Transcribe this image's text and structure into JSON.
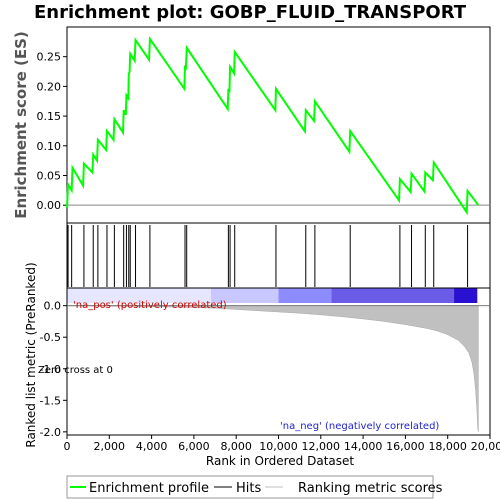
{
  "chart_data": [
    {
      "type": "line",
      "title": "Enrichment plot: GOBP_FLUID_TRANSPORT",
      "ylabel": "Enrichment score (ES)",
      "xlim": [
        0,
        20000
      ],
      "ylim": [
        -0.03,
        0.3
      ],
      "yticks": [
        "0.00",
        "0.05",
        "0.10",
        "0.15",
        "0.20",
        "0.25"
      ],
      "ytick_values": [
        0,
        0.05,
        0.1,
        0.15,
        0.2,
        0.25
      ],
      "color": "#00ff00",
      "series": [
        {
          "name": "Enrichment profile",
          "points": [
            [
              0,
              -0.005
            ],
            [
              50,
              0.035
            ],
            [
              220,
              0.025
            ],
            [
              260,
              0.063
            ],
            [
              760,
              0.033
            ],
            [
              800,
              0.07
            ],
            [
              1200,
              0.055
            ],
            [
              1240,
              0.085
            ],
            [
              1420,
              0.075
            ],
            [
              1460,
              0.11
            ],
            [
              1850,
              0.093
            ],
            [
              1890,
              0.125
            ],
            [
              2200,
              0.11
            ],
            [
              2240,
              0.145
            ],
            [
              2650,
              0.122
            ],
            [
              2680,
              0.16
            ],
            [
              2780,
              0.152
            ],
            [
              2810,
              0.185
            ],
            [
              2900,
              0.18
            ],
            [
              2920,
              0.22
            ],
            [
              2960,
              0.225
            ],
            [
              2990,
              0.255
            ],
            [
              3200,
              0.243
            ],
            [
              3240,
              0.278
            ],
            [
              3880,
              0.245
            ],
            [
              3920,
              0.28
            ],
            [
              5550,
              0.196
            ],
            [
              5580,
              0.235
            ],
            [
              5620,
              0.228
            ],
            [
              5660,
              0.265
            ],
            [
              7600,
              0.162
            ],
            [
              7630,
              0.196
            ],
            [
              7680,
              0.19
            ],
            [
              7710,
              0.233
            ],
            [
              7900,
              0.222
            ],
            [
              7930,
              0.258
            ],
            [
              9850,
              0.16
            ],
            [
              9880,
              0.196
            ],
            [
              11250,
              0.124
            ],
            [
              11290,
              0.16
            ],
            [
              11680,
              0.142
            ],
            [
              11720,
              0.175
            ],
            [
              13350,
              0.09
            ],
            [
              13390,
              0.125
            ],
            [
              15700,
              0.008
            ],
            [
              15740,
              0.044
            ],
            [
              16250,
              0.022
            ],
            [
              16290,
              0.053
            ],
            [
              16900,
              0.023
            ],
            [
              16940,
              0.055
            ],
            [
              17300,
              0.042
            ],
            [
              17340,
              0.072
            ],
            [
              18900,
              -0.012
            ],
            [
              18940,
              0.024
            ],
            [
              19450,
              0.0
            ]
          ]
        }
      ]
    },
    {
      "type": "hits",
      "xlim": [
        0,
        20000
      ],
      "hits": [
        50,
        220,
        800,
        1240,
        1460,
        1890,
        2240,
        2680,
        2810,
        2920,
        2990,
        3240,
        3920,
        5580,
        5660,
        7630,
        7710,
        7930,
        9880,
        11290,
        11720,
        13390,
        15740,
        16290,
        16940,
        17340,
        18940
      ],
      "heatbar": {
        "segments": [
          {
            "from": 0,
            "to": 6800,
            "color": "#e6e6ff"
          },
          {
            "from": 6800,
            "to": 10000,
            "color": "#c8c8ff"
          },
          {
            "from": 10000,
            "to": 12500,
            "color": "#8c8cff"
          },
          {
            "from": 12500,
            "to": 18300,
            "color": "#6a5ce6"
          },
          {
            "from": 18300,
            "to": 19400,
            "color": "#2a10d0"
          }
        ]
      }
    },
    {
      "type": "area",
      "ylabel": "Ranked list metric (PreRanked)",
      "xlabel": "Rank in Ordered Dataset",
      "xlim": [
        0,
        20000
      ],
      "ylim": [
        -2.05,
        0.28
      ],
      "xticks": [
        "0",
        "2,000",
        "4,000",
        "6,000",
        "8,000",
        "10,000",
        "12,000",
        "14,000",
        "16,000",
        "18,000",
        "20,000"
      ],
      "xtick_values": [
        0,
        2000,
        4000,
        6000,
        8000,
        10000,
        12000,
        14000,
        16000,
        18000,
        20000
      ],
      "yticks": [
        "0.0",
        "-0.5",
        "-1.0",
        "-1.5",
        "-2.0"
      ],
      "ytick_values": [
        0,
        -0.5,
        -1.0,
        -1.5,
        -2.0
      ],
      "fill": "#c0c0c0",
      "points": [
        [
          0,
          -0.005
        ],
        [
          2000,
          -0.008
        ],
        [
          4000,
          -0.015
        ],
        [
          6000,
          -0.03
        ],
        [
          7000,
          -0.04
        ],
        [
          8000,
          -0.06
        ],
        [
          9000,
          -0.08
        ],
        [
          10000,
          -0.1
        ],
        [
          11000,
          -0.12
        ],
        [
          12000,
          -0.145
        ],
        [
          13000,
          -0.175
        ],
        [
          14000,
          -0.21
        ],
        [
          15000,
          -0.25
        ],
        [
          16000,
          -0.3
        ],
        [
          17000,
          -0.36
        ],
        [
          17500,
          -0.4
        ],
        [
          18000,
          -0.46
        ],
        [
          18500,
          -0.55
        ],
        [
          18800,
          -0.65
        ],
        [
          19000,
          -0.75
        ],
        [
          19150,
          -0.9
        ],
        [
          19250,
          -1.1
        ],
        [
          19320,
          -1.35
        ],
        [
          19380,
          -1.65
        ],
        [
          19420,
          -1.95
        ],
        [
          19450,
          -2.0
        ]
      ],
      "zero_cross_label": "Zero cross at 0",
      "pos_label": "'na_pos' (positively correlated)",
      "neg_label": "'na_neg' (negatively correlated)"
    }
  ],
  "legend": {
    "items": [
      {
        "label": "Enrichment profile",
        "color": "#00ff00"
      },
      {
        "label": "Hits",
        "color": "#000000"
      },
      {
        "label": "Ranking metric scores",
        "color": "#c0c0c0"
      }
    ]
  }
}
